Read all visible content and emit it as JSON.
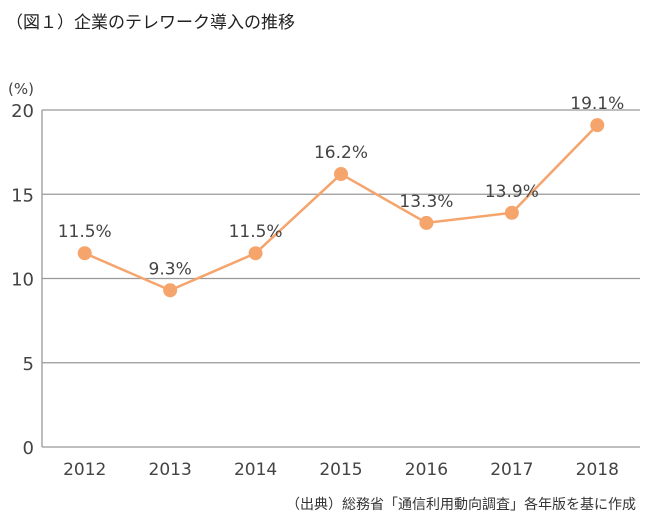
{
  "chart_data": {
    "type": "line",
    "title": "（図１）企業のテレワーク導入の推移",
    "ylabel": "(%)",
    "xlabel": "",
    "source": "（出典）総務省「通信利用動向調査」各年版を基に作成",
    "categories": [
      "2012",
      "2013",
      "2014",
      "2015",
      "2016",
      "2017",
      "2018"
    ],
    "values": [
      11.5,
      9.3,
      11.5,
      16.2,
      13.3,
      13.9,
      19.1
    ],
    "data_labels": [
      "11.5%",
      "9.3%",
      "11.5%",
      "16.2%",
      "13.3%",
      "13.9%",
      "19.1%"
    ],
    "ylim": [
      0,
      20
    ],
    "yticks": [
      "0",
      "5",
      "10",
      "15",
      "20"
    ],
    "grid": true,
    "color": "#f5a46c"
  }
}
